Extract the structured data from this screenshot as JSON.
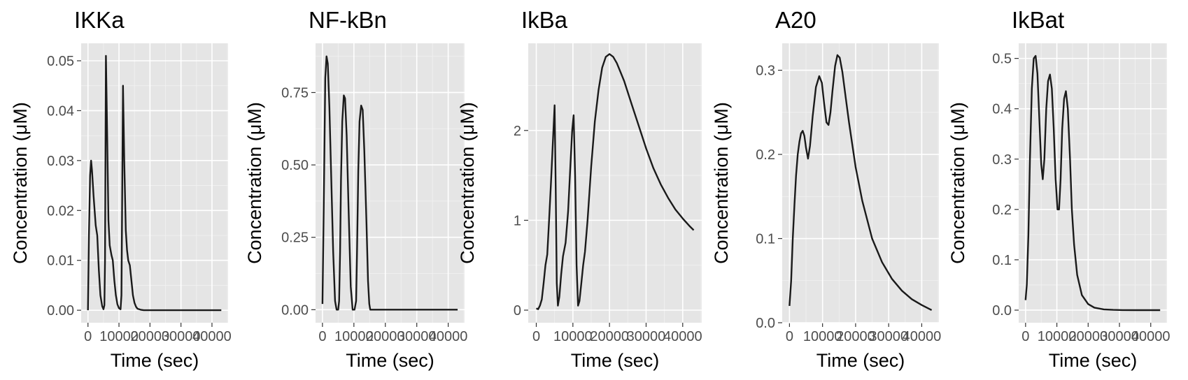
{
  "chart_data": [
    {
      "type": "line",
      "title": "IKKa",
      "xlabel": "Time (sec)",
      "ylabel": "Concentration (μM)",
      "xlim": [
        -2200,
        45200
      ],
      "ylim": [
        -0.0025,
        0.0535
      ],
      "x_ticks": [
        0,
        10000,
        20000,
        30000,
        40000
      ],
      "x_tick_labels": [
        "0",
        "10000",
        "20000",
        "30000",
        "40000"
      ],
      "y_ticks": [
        0.0,
        0.01,
        0.02,
        0.03,
        0.04,
        0.05
      ],
      "y_tick_labels": [
        "0.00",
        "0.01",
        "0.02",
        "0.03",
        "0.04",
        "0.05"
      ],
      "grid": true,
      "series": [
        {
          "x": [
            0,
            300,
            700,
            1000,
            1300,
            1800,
            2500,
            3000,
            3500,
            4000,
            4600,
            5000,
            5300,
            5500,
            5800,
            6200,
            6600,
            7000,
            7600,
            8000,
            8500,
            9000,
            9500,
            10000,
            10500,
            10800,
            11000,
            11300,
            11700,
            12200,
            12600,
            13000,
            13500,
            14000,
            14500,
            15000,
            15500,
            16000,
            17000,
            18000,
            20000,
            25000,
            30000,
            35000,
            40000,
            43000
          ],
          "y": [
            0.0,
            0.015,
            0.027,
            0.03,
            0.028,
            0.023,
            0.017,
            0.015,
            0.008,
            0.003,
            0.0008,
            0.0002,
            0.001,
            0.01,
            0.051,
            0.035,
            0.018,
            0.013,
            0.011,
            0.01,
            0.006,
            0.003,
            0.0012,
            0.0004,
            0.0002,
            0.003,
            0.02,
            0.045,
            0.03,
            0.016,
            0.012,
            0.01,
            0.009,
            0.006,
            0.003,
            0.0015,
            0.0007,
            0.0003,
            0.0001,
            0.0,
            0.0,
            0.0,
            0.0,
            0.0,
            0.0,
            0.0
          ]
        }
      ]
    },
    {
      "type": "line",
      "title": "NF-kBn",
      "xlabel": "Time (sec)",
      "ylabel": "Concentration (μM)",
      "xlim": [
        -2200,
        45200
      ],
      "ylim": [
        -0.045,
        0.92
      ],
      "x_ticks": [
        0,
        10000,
        20000,
        30000,
        40000
      ],
      "x_tick_labels": [
        "0",
        "10000",
        "20000",
        "30000",
        "40000"
      ],
      "y_ticks": [
        0.0,
        0.25,
        0.5,
        0.75
      ],
      "y_tick_labels": [
        "0.00",
        "0.25",
        "0.50",
        "0.75"
      ],
      "grid": true,
      "series": [
        {
          "x": [
            0,
            400,
            900,
            1300,
            1700,
            2200,
            2800,
            3400,
            4000,
            4500,
            5000,
            5300,
            5600,
            5900,
            6300,
            6800,
            7200,
            7700,
            8300,
            9000,
            9600,
            10200,
            10700,
            11000,
            11400,
            11800,
            12300,
            12800,
            13300,
            14000,
            14500,
            14900,
            15200,
            16000,
            18000,
            20000,
            25000,
            30000,
            35000,
            40000,
            43000
          ],
          "y": [
            0.02,
            0.35,
            0.8,
            0.875,
            0.85,
            0.7,
            0.45,
            0.2,
            0.03,
            0.0,
            0.0,
            0.03,
            0.2,
            0.45,
            0.65,
            0.74,
            0.73,
            0.6,
            0.35,
            0.08,
            0.0,
            0.0,
            0.03,
            0.2,
            0.48,
            0.65,
            0.705,
            0.69,
            0.55,
            0.3,
            0.1,
            0.02,
            0.0,
            0.0,
            0.0,
            0.0,
            0.0,
            0.0,
            0.0,
            0.0,
            0.0
          ]
        }
      ]
    },
    {
      "type": "line",
      "title": "IkBa",
      "xlabel": "Time (sec)",
      "ylabel": "Concentration (μM)",
      "xlim": [
        -2200,
        45200
      ],
      "ylim": [
        -0.14,
        2.97
      ],
      "x_ticks": [
        0,
        10000,
        20000,
        30000,
        40000
      ],
      "x_tick_labels": [
        "0",
        "10000",
        "20000",
        "30000",
        "40000"
      ],
      "y_ticks": [
        0,
        1,
        2
      ],
      "y_tick_labels": [
        "0",
        "1",
        "2"
      ],
      "grid": true,
      "series": [
        {
          "x": [
            0,
            500,
            1000,
            1500,
            2000,
            2500,
            3000,
            3500,
            4000,
            4500,
            5000,
            5300,
            5600,
            5900,
            6300,
            6800,
            7300,
            8000,
            8700,
            9300,
            9800,
            10200,
            10600,
            11000,
            11400,
            11800,
            12300,
            12800,
            13300,
            14000,
            15000,
            16000,
            17000,
            18000,
            19000,
            20000,
            21000,
            22000,
            24000,
            26000,
            28000,
            30000,
            32000,
            34000,
            36000,
            38000,
            40000,
            42000,
            43000
          ],
          "y": [
            0.02,
            0.01,
            0.05,
            0.12,
            0.3,
            0.5,
            0.62,
            1.0,
            1.4,
            1.85,
            2.28,
            1.4,
            0.3,
            0.05,
            0.15,
            0.4,
            0.6,
            0.75,
            1.1,
            1.6,
            2.0,
            2.17,
            1.5,
            0.5,
            0.05,
            0.1,
            0.3,
            0.5,
            0.65,
            1.0,
            1.6,
            2.1,
            2.45,
            2.7,
            2.82,
            2.85,
            2.82,
            2.75,
            2.55,
            2.3,
            2.05,
            1.8,
            1.58,
            1.4,
            1.25,
            1.12,
            1.02,
            0.93,
            0.89
          ]
        }
      ]
    },
    {
      "type": "line",
      "title": "A20",
      "xlabel": "Time (sec)",
      "ylabel": "Concentration (μM)",
      "xlim": [
        -2200,
        45200
      ],
      "ylim": [
        0.0,
        0.332
      ],
      "x_ticks": [
        0,
        10000,
        20000,
        30000,
        40000
      ],
      "x_tick_labels": [
        "0",
        "10000",
        "20000",
        "30000",
        "40000"
      ],
      "y_ticks": [
        0.0,
        0.1,
        0.2,
        0.3
      ],
      "y_tick_labels": [
        "0.0",
        "0.1",
        "0.2",
        "0.3"
      ],
      "grid": true,
      "series": [
        {
          "x": [
            0,
            500,
            1000,
            1500,
            2000,
            2500,
            3000,
            3500,
            4000,
            4500,
            5000,
            5600,
            6200,
            7000,
            8000,
            9000,
            9800,
            10500,
            11200,
            11800,
            12400,
            13000,
            13800,
            14500,
            15200,
            16000,
            17000,
            18000,
            20000,
            22000,
            25000,
            28000,
            31000,
            34000,
            37000,
            40000,
            43000
          ],
          "y": [
            0.02,
            0.05,
            0.1,
            0.14,
            0.175,
            0.2,
            0.215,
            0.225,
            0.228,
            0.222,
            0.208,
            0.195,
            0.21,
            0.245,
            0.28,
            0.293,
            0.285,
            0.26,
            0.238,
            0.235,
            0.25,
            0.275,
            0.305,
            0.318,
            0.315,
            0.298,
            0.268,
            0.238,
            0.185,
            0.145,
            0.1,
            0.072,
            0.052,
            0.038,
            0.028,
            0.021,
            0.015
          ]
        }
      ]
    },
    {
      "type": "line",
      "title": "IkBat",
      "xlabel": "Time (sec)",
      "ylabel": "Concentration (μM)",
      "xlim": [
        -2200,
        45200
      ],
      "ylim": [
        -0.025,
        0.53
      ],
      "x_ticks": [
        0,
        10000,
        20000,
        30000,
        40000
      ],
      "x_tick_labels": [
        "0",
        "10000",
        "20000",
        "30000",
        "40000"
      ],
      "y_ticks": [
        0.0,
        0.1,
        0.2,
        0.3,
        0.4,
        0.5
      ],
      "y_tick_labels": [
        "0.0",
        "0.1",
        "0.2",
        "0.3",
        "0.4",
        "0.5"
      ],
      "grid": true,
      "series": [
        {
          "x": [
            0,
            400,
            900,
            1400,
            2000,
            2600,
            3200,
            3800,
            4400,
            5000,
            5500,
            6000,
            6600,
            7200,
            7800,
            8400,
            9000,
            9600,
            10200,
            10700,
            11200,
            11700,
            12300,
            12900,
            13500,
            14200,
            14800,
            15500,
            16500,
            18000,
            20000,
            22000,
            25000,
            28000,
            31000,
            35000,
            40000,
            43000
          ],
          "y": [
            0.02,
            0.05,
            0.15,
            0.3,
            0.44,
            0.5,
            0.505,
            0.47,
            0.38,
            0.29,
            0.26,
            0.3,
            0.4,
            0.455,
            0.468,
            0.44,
            0.36,
            0.26,
            0.2,
            0.2,
            0.26,
            0.36,
            0.42,
            0.435,
            0.4,
            0.3,
            0.2,
            0.13,
            0.07,
            0.03,
            0.012,
            0.005,
            0.0015,
            0.0005,
            0.0001,
            0.0,
            0.0,
            0.0
          ]
        }
      ]
    }
  ]
}
